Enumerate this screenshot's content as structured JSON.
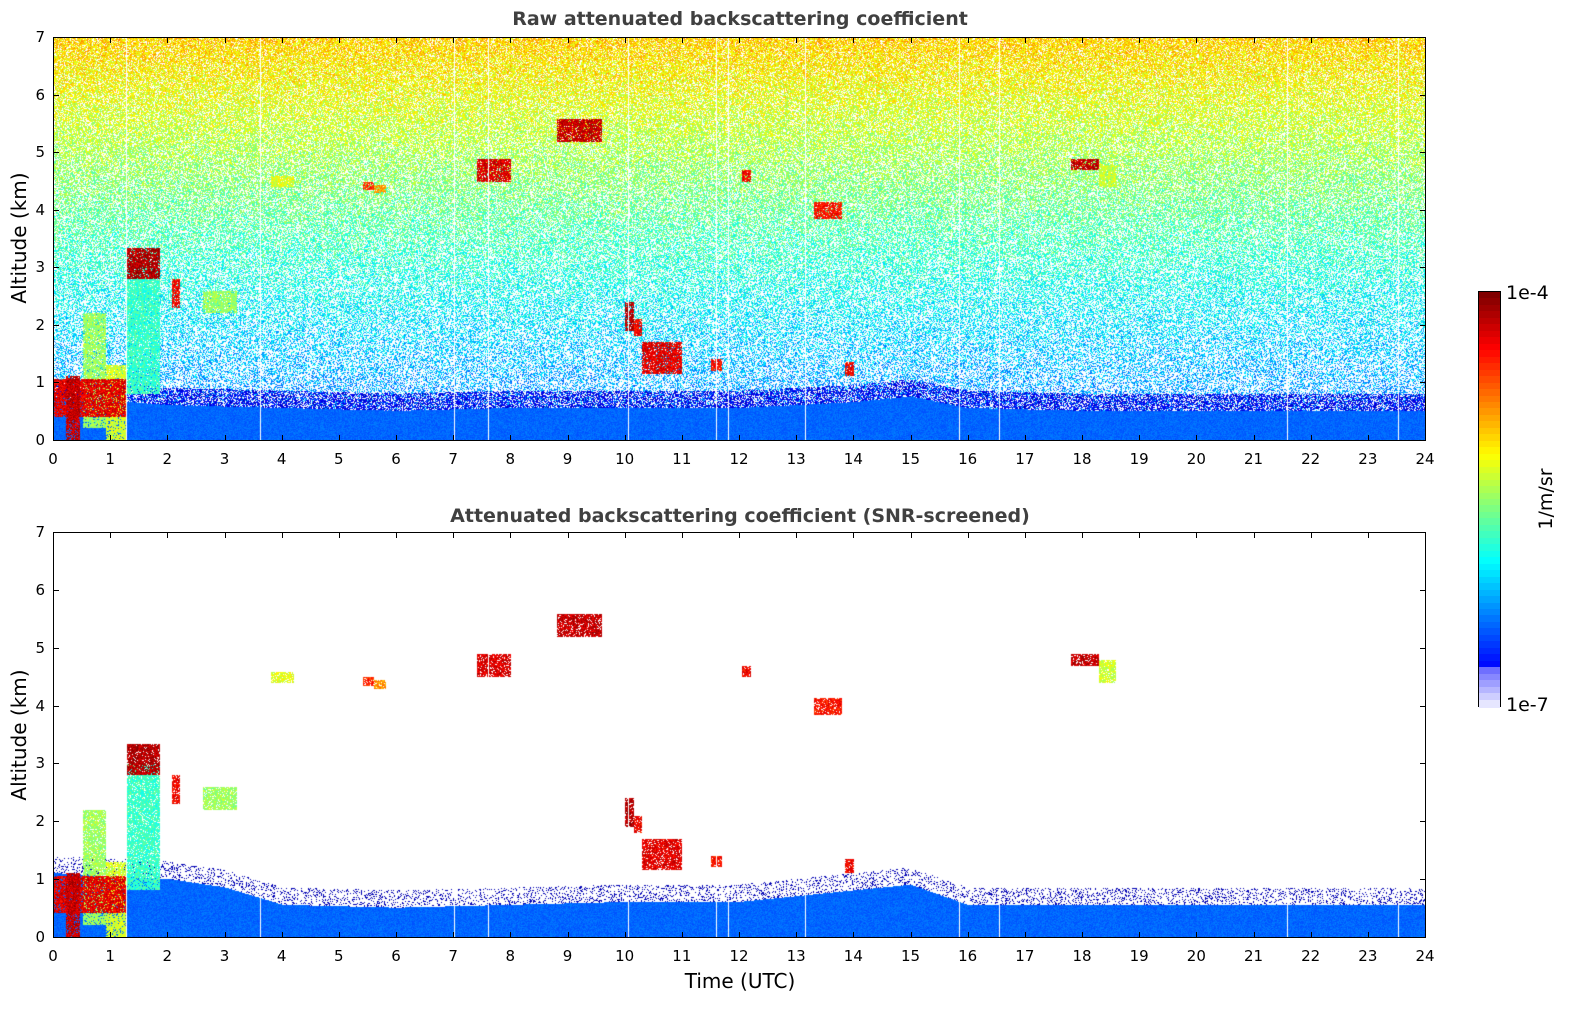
{
  "chart_data": [
    {
      "type": "heatmap",
      "title": "Raw attenuated backscattering coefficient",
      "xlabel": "",
      "ylabel": "Altitude (km)",
      "xlim": [
        0,
        24
      ],
      "ylim": [
        0,
        7
      ],
      "xticks": [
        "0",
        "1",
        "2",
        "3",
        "4",
        "5",
        "6",
        "7",
        "8",
        "9",
        "10",
        "11",
        "12",
        "13",
        "14",
        "15",
        "16",
        "17",
        "18",
        "19",
        "20",
        "21",
        "22",
        "23",
        "24"
      ],
      "yticks": [
        "0",
        "1",
        "2",
        "3",
        "4",
        "5",
        "6",
        "7"
      ],
      "grid": false,
      "color_scale": "log",
      "noise_field": true,
      "boundary_layer_top_km": [
        {
          "t": 0,
          "h": 0.75
        },
        {
          "t": 2,
          "h": 0.6
        },
        {
          "t": 4,
          "h": 0.55
        },
        {
          "t": 6,
          "h": 0.5
        },
        {
          "t": 8,
          "h": 0.55
        },
        {
          "t": 10,
          "h": 0.55
        },
        {
          "t": 12,
          "h": 0.55
        },
        {
          "t": 14,
          "h": 0.65
        },
        {
          "t": 15,
          "h": 0.75
        },
        {
          "t": 16,
          "h": 0.55
        },
        {
          "t": 18,
          "h": 0.5
        },
        {
          "t": 20,
          "h": 0.5
        },
        {
          "t": 22,
          "h": 0.5
        },
        {
          "t": 24,
          "h": 0.5
        }
      ],
      "features": [
        {
          "t0": 0.0,
          "t1": 1.25,
          "h0": 0.4,
          "h1": 1.05,
          "level": 0.92
        },
        {
          "t0": 0.2,
          "t1": 0.45,
          "h0": 0.0,
          "h1": 1.1,
          "level": 0.95
        },
        {
          "t0": 0.5,
          "t1": 0.9,
          "h0": 0.2,
          "h1": 2.2,
          "level": 0.55
        },
        {
          "t0": 0.9,
          "t1": 1.25,
          "h0": 0.0,
          "h1": 1.3,
          "level": 0.6
        },
        {
          "t0": 1.25,
          "t1": 1.85,
          "h0": 0.8,
          "h1": 3.0,
          "level": 0.45
        },
        {
          "t0": 1.25,
          "t1": 1.85,
          "h0": 2.8,
          "h1": 3.35,
          "level": 0.97
        },
        {
          "t0": 2.05,
          "t1": 2.2,
          "h0": 2.3,
          "h1": 2.8,
          "level": 0.9
        },
        {
          "t0": 2.6,
          "t1": 3.2,
          "h0": 2.2,
          "h1": 2.6,
          "level": 0.55
        },
        {
          "t0": 3.8,
          "t1": 4.2,
          "h0": 4.4,
          "h1": 4.6,
          "level": 0.62
        },
        {
          "t0": 5.4,
          "t1": 5.6,
          "h0": 4.35,
          "h1": 4.5,
          "level": 0.85
        },
        {
          "t0": 5.6,
          "t1": 5.8,
          "h0": 4.3,
          "h1": 4.45,
          "level": 0.75
        },
        {
          "t0": 7.4,
          "t1": 8.0,
          "h0": 4.5,
          "h1": 4.9,
          "level": 0.93
        },
        {
          "t0": 8.8,
          "t1": 9.6,
          "h0": 5.2,
          "h1": 5.6,
          "level": 0.95
        },
        {
          "t0": 10.0,
          "t1": 10.15,
          "h0": 1.9,
          "h1": 2.4,
          "level": 0.97
        },
        {
          "t0": 10.15,
          "t1": 10.3,
          "h0": 1.8,
          "h1": 2.1,
          "level": 0.9
        },
        {
          "t0": 10.3,
          "t1": 11.0,
          "h0": 1.15,
          "h1": 1.7,
          "level": 0.92
        },
        {
          "t0": 11.5,
          "t1": 11.7,
          "h0": 1.2,
          "h1": 1.4,
          "level": 0.88
        },
        {
          "t0": 12.05,
          "t1": 12.2,
          "h0": 4.5,
          "h1": 4.7,
          "level": 0.9
        },
        {
          "t0": 13.3,
          "t1": 13.8,
          "h0": 3.85,
          "h1": 4.15,
          "level": 0.88
        },
        {
          "t0": 13.85,
          "t1": 14.0,
          "h0": 1.1,
          "h1": 1.35,
          "level": 0.9
        },
        {
          "t0": 17.8,
          "t1": 18.3,
          "h0": 4.7,
          "h1": 4.9,
          "level": 0.95
        },
        {
          "t0": 18.3,
          "t1": 18.6,
          "h0": 4.4,
          "h1": 4.8,
          "level": 0.6
        }
      ],
      "data_gaps_utc": [
        1.27,
        3.6,
        7.0,
        7.6,
        10.05,
        11.6,
        11.8,
        13.15,
        15.85,
        16.55,
        21.6,
        23.55
      ]
    },
    {
      "type": "heatmap",
      "title": "Attenuated backscattering coefficient (SNR-screened)",
      "xlabel": "Time (UTC)",
      "ylabel": "Altitude (km)",
      "xlim": [
        0,
        24
      ],
      "ylim": [
        0,
        7
      ],
      "xticks": [
        "0",
        "1",
        "2",
        "3",
        "4",
        "5",
        "6",
        "7",
        "8",
        "9",
        "10",
        "11",
        "12",
        "13",
        "14",
        "15",
        "16",
        "17",
        "18",
        "19",
        "20",
        "21",
        "22",
        "23",
        "24"
      ],
      "yticks": [
        "0",
        "1",
        "2",
        "3",
        "4",
        "5",
        "6",
        "7"
      ],
      "grid": false,
      "color_scale": "log",
      "noise_field": false,
      "boundary_layer_top_km": [
        {
          "t": 0,
          "h": 1.1
        },
        {
          "t": 2,
          "h": 1.0
        },
        {
          "t": 3,
          "h": 0.85
        },
        {
          "t": 4,
          "h": 0.55
        },
        {
          "t": 6,
          "h": 0.5
        },
        {
          "t": 8,
          "h": 0.55
        },
        {
          "t": 10,
          "h": 0.6
        },
        {
          "t": 12,
          "h": 0.6
        },
        {
          "t": 14,
          "h": 0.8
        },
        {
          "t": 15,
          "h": 0.9
        },
        {
          "t": 16,
          "h": 0.55
        },
        {
          "t": 18,
          "h": 0.55
        },
        {
          "t": 20,
          "h": 0.55
        },
        {
          "t": 22,
          "h": 0.55
        },
        {
          "t": 24,
          "h": 0.55
        }
      ],
      "features": [
        {
          "t0": 0.0,
          "t1": 1.25,
          "h0": 0.4,
          "h1": 1.05,
          "level": 0.92
        },
        {
          "t0": 0.2,
          "t1": 0.45,
          "h0": 0.0,
          "h1": 1.1,
          "level": 0.95
        },
        {
          "t0": 0.5,
          "t1": 0.9,
          "h0": 0.2,
          "h1": 2.2,
          "level": 0.55
        },
        {
          "t0": 0.9,
          "t1": 1.25,
          "h0": 0.0,
          "h1": 1.3,
          "level": 0.6
        },
        {
          "t0": 1.25,
          "t1": 1.85,
          "h0": 0.8,
          "h1": 3.0,
          "level": 0.45
        },
        {
          "t0": 1.25,
          "t1": 1.85,
          "h0": 2.8,
          "h1": 3.35,
          "level": 0.97
        },
        {
          "t0": 2.05,
          "t1": 2.2,
          "h0": 2.3,
          "h1": 2.8,
          "level": 0.9
        },
        {
          "t0": 2.6,
          "t1": 3.2,
          "h0": 2.2,
          "h1": 2.6,
          "level": 0.55
        },
        {
          "t0": 3.8,
          "t1": 4.2,
          "h0": 4.4,
          "h1": 4.6,
          "level": 0.62
        },
        {
          "t0": 5.4,
          "t1": 5.6,
          "h0": 4.35,
          "h1": 4.5,
          "level": 0.85
        },
        {
          "t0": 5.6,
          "t1": 5.8,
          "h0": 4.3,
          "h1": 4.45,
          "level": 0.75
        },
        {
          "t0": 7.4,
          "t1": 8.0,
          "h0": 4.5,
          "h1": 4.9,
          "level": 0.93
        },
        {
          "t0": 8.8,
          "t1": 9.6,
          "h0": 5.2,
          "h1": 5.6,
          "level": 0.95
        },
        {
          "t0": 10.0,
          "t1": 10.15,
          "h0": 1.9,
          "h1": 2.4,
          "level": 0.97
        },
        {
          "t0": 10.15,
          "t1": 10.3,
          "h0": 1.8,
          "h1": 2.1,
          "level": 0.9
        },
        {
          "t0": 10.3,
          "t1": 11.0,
          "h0": 1.15,
          "h1": 1.7,
          "level": 0.92
        },
        {
          "t0": 11.5,
          "t1": 11.7,
          "h0": 1.2,
          "h1": 1.4,
          "level": 0.88
        },
        {
          "t0": 12.05,
          "t1": 12.2,
          "h0": 4.5,
          "h1": 4.7,
          "level": 0.9
        },
        {
          "t0": 13.3,
          "t1": 13.8,
          "h0": 3.85,
          "h1": 4.15,
          "level": 0.88
        },
        {
          "t0": 13.85,
          "t1": 14.0,
          "h0": 1.1,
          "h1": 1.35,
          "level": 0.9
        },
        {
          "t0": 17.8,
          "t1": 18.3,
          "h0": 4.7,
          "h1": 4.9,
          "level": 0.95
        },
        {
          "t0": 18.3,
          "t1": 18.6,
          "h0": 4.4,
          "h1": 4.8,
          "level": 0.6
        }
      ],
      "data_gaps_utc": [
        1.27,
        3.6,
        7.0,
        7.6,
        10.05,
        11.6,
        11.8,
        13.15,
        15.85,
        16.55,
        21.6,
        23.55
      ]
    }
  ],
  "colorbar": {
    "max_label": "1e-4",
    "min_label": "1e-7",
    "unit_label": "1/m/sr",
    "colormap": "jet"
  }
}
